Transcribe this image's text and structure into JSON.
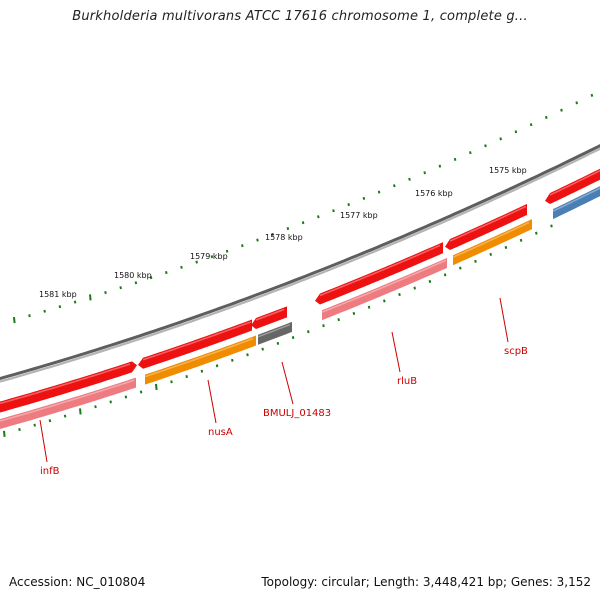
{
  "title": "Burkholderia multivorans ATCC 17616 chromosome 1, complete g...",
  "footer": {
    "accession": "Accession: NC_010804",
    "topology": "Topology: circular; Length: 3,448,421 bp; Genes: 3,152"
  },
  "colors": {
    "backbone": "#7a7a7a",
    "tick": "#1a7a1a",
    "label": "#cc0000",
    "red_gene": "#ee1111",
    "pink_gene": "#ee7b80",
    "orange_gene": "#f08c00",
    "gray_gene": "#666666",
    "blue_gene": "#4a7fb5"
  },
  "scale": {
    "direction": "decreasing clockwise",
    "kbp_labels": [
      "1581 kbp",
      "1580 kbp",
      "1579 kbp",
      "1578 kbp",
      "1577 kbp",
      "1576 kbp",
      "1575 kbp"
    ]
  },
  "gene_labels": [
    "infB",
    "nusA",
    "BMULJ_01483",
    "rluB",
    "scpB"
  ]
}
